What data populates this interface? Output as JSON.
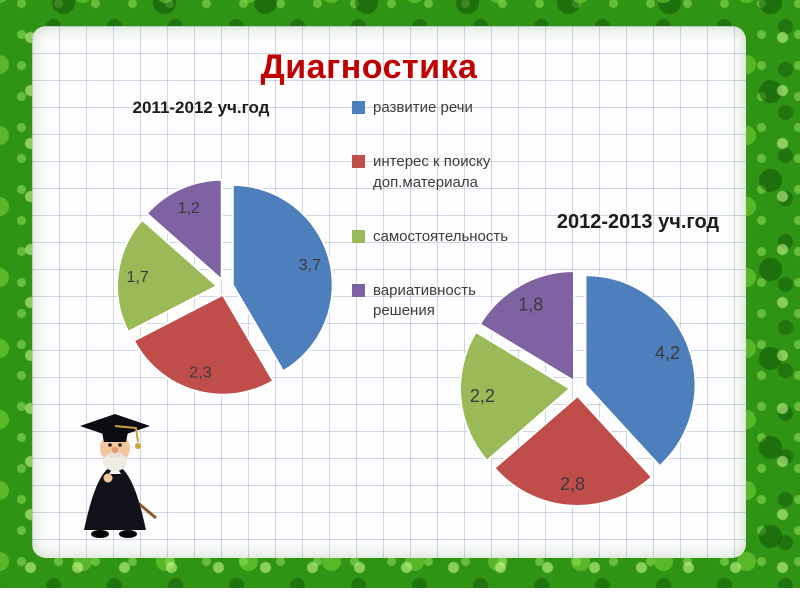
{
  "slide": {
    "title": "Диагностика",
    "title_color": "#c00000"
  },
  "chart_data": [
    {
      "type": "pie",
      "title": "2011-2012 уч.год",
      "categories": [
        "развитие речи",
        "интерес к поиску доп.материала",
        "самостоятельность",
        "вариативность решения"
      ],
      "values": [
        3.7,
        2.3,
        1.7,
        1.2
      ],
      "value_labels": [
        "3,7",
        "2,3",
        "1,7",
        "1,2"
      ],
      "colors": [
        "#4e7fbd",
        "#bf4e4a",
        "#9aba58",
        "#7e62a1"
      ],
      "start_angle_deg": 0,
      "direction": "clockwise",
      "exploded": true,
      "legend_position": "right-of-chart"
    },
    {
      "type": "pie",
      "title": "2012-2013 уч.год",
      "categories": [
        "развитие речи",
        "интерес к поиску доп.материала",
        "самостоятельность",
        "вариативность решения"
      ],
      "values": [
        4.2,
        2.8,
        2.2,
        1.8
      ],
      "value_labels": [
        "4,2",
        "2,8",
        "2,2",
        "1,8"
      ],
      "colors": [
        "#4e7fbd",
        "#bf4e4a",
        "#9aba58",
        "#7e62a1"
      ],
      "start_angle_deg": 0,
      "direction": "clockwise",
      "exploded": true,
      "legend_position": "shared"
    }
  ],
  "legend": {
    "items": [
      {
        "label": "развитие речи",
        "color": "#4e7fbd"
      },
      {
        "label": "интерес к поиску доп.материала",
        "color": "#bf4e4a"
      },
      {
        "label": "самостоятельность",
        "color": "#9aba58"
      },
      {
        "label": "вариативность решения",
        "color": "#7e62a1"
      }
    ]
  },
  "decorations": {
    "mascot": "professor-with-pointer-cartoon"
  }
}
